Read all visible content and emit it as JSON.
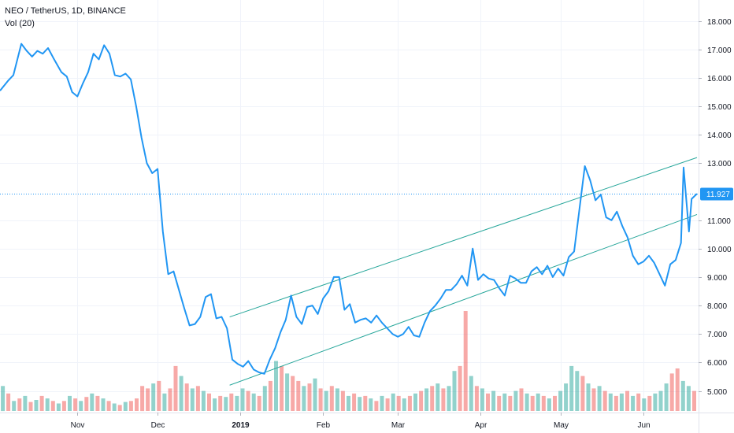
{
  "legend": {
    "symbol": "NEO / TetherUS, 1D, BINANCE",
    "volume": "Vol (20)"
  },
  "colors": {
    "price_line": "#2196f3",
    "channel": "#26a69a",
    "vol_up": "#26a69a",
    "vol_down": "#ef5350",
    "last_price": "#2196f3"
  },
  "chart_data": {
    "type": "line",
    "title": "NEO / TetherUS, 1D, BINANCE",
    "y_ticks": [
      "18.000",
      "17.000",
      "16.000",
      "15.000",
      "14.000",
      "13.000",
      "11.000",
      "10.000",
      "9.000",
      "8.000",
      "7.000",
      "6.000",
      "5.000"
    ],
    "y_tick_values": [
      18,
      17,
      16,
      15,
      14,
      13,
      11,
      10,
      9,
      8,
      7,
      6,
      5
    ],
    "ylim": [
      4.35,
      18.6
    ],
    "x_ticks": [
      {
        "label": "Nov",
        "date": "2018-11-01",
        "bold": false
      },
      {
        "label": "Dec",
        "date": "2018-12-01",
        "bold": false
      },
      {
        "label": "2019",
        "date": "2019-01-01",
        "bold": true
      },
      {
        "label": "Feb",
        "date": "2019-02-01",
        "bold": false
      },
      {
        "label": "Mar",
        "date": "2019-03-01",
        "bold": false
      },
      {
        "label": "Apr",
        "date": "2019-04-01",
        "bold": false
      },
      {
        "label": "May",
        "date": "2019-05-01",
        "bold": false
      },
      {
        "label": "Jun",
        "date": "2019-06-01",
        "bold": false
      }
    ],
    "xlim": [
      "2018-10-03",
      "2019-06-21"
    ],
    "last_price": 11.927,
    "last_price_label": "11.927",
    "series": [
      {
        "values": [
          [
            "2018-10-03",
            15.55
          ],
          [
            "2018-10-06",
            15.9
          ],
          [
            "2018-10-08",
            16.1
          ],
          [
            "2018-10-11",
            17.2
          ],
          [
            "2018-10-13",
            16.95
          ],
          [
            "2018-10-15",
            16.75
          ],
          [
            "2018-10-17",
            16.95
          ],
          [
            "2018-10-19",
            16.85
          ],
          [
            "2018-10-21",
            17.05
          ],
          [
            "2018-10-23",
            16.7
          ],
          [
            "2018-10-26",
            16.2
          ],
          [
            "2018-10-28",
            16.05
          ],
          [
            "2018-10-30",
            15.5
          ],
          [
            "2018-11-01",
            15.35
          ],
          [
            "2018-11-03",
            15.8
          ],
          [
            "2018-11-05",
            16.2
          ],
          [
            "2018-11-07",
            16.85
          ],
          [
            "2018-11-09",
            16.65
          ],
          [
            "2018-11-11",
            17.15
          ],
          [
            "2018-11-13",
            16.85
          ],
          [
            "2018-11-15",
            16.1
          ],
          [
            "2018-11-17",
            16.05
          ],
          [
            "2018-11-19",
            16.15
          ],
          [
            "2018-11-21",
            15.95
          ],
          [
            "2018-11-23",
            15.0
          ],
          [
            "2018-11-25",
            13.9
          ],
          [
            "2018-11-27",
            13.0
          ],
          [
            "2018-11-29",
            12.65
          ],
          [
            "2018-12-01",
            12.8
          ],
          [
            "2018-12-03",
            10.6
          ],
          [
            "2018-12-05",
            9.1
          ],
          [
            "2018-12-07",
            9.2
          ],
          [
            "2018-12-09",
            8.55
          ],
          [
            "2018-12-11",
            7.9
          ],
          [
            "2018-12-13",
            7.3
          ],
          [
            "2018-12-15",
            7.35
          ],
          [
            "2018-12-17",
            7.6
          ],
          [
            "2018-12-19",
            8.3
          ],
          [
            "2018-12-21",
            8.4
          ],
          [
            "2018-12-23",
            7.55
          ],
          [
            "2018-12-25",
            7.6
          ],
          [
            "2018-12-27",
            7.2
          ],
          [
            "2018-12-29",
            6.1
          ],
          [
            "2018-12-31",
            5.95
          ],
          [
            "2019-01-02",
            5.85
          ],
          [
            "2019-01-04",
            6.05
          ],
          [
            "2019-01-06",
            5.75
          ],
          [
            "2019-01-08",
            5.65
          ],
          [
            "2019-01-10",
            5.6
          ],
          [
            "2019-01-12",
            6.1
          ],
          [
            "2019-01-14",
            6.5
          ],
          [
            "2019-01-16",
            7.05
          ],
          [
            "2019-01-18",
            7.5
          ],
          [
            "2019-01-20",
            8.35
          ],
          [
            "2019-01-22",
            7.6
          ],
          [
            "2019-01-24",
            7.35
          ],
          [
            "2019-01-26",
            7.95
          ],
          [
            "2019-01-28",
            8.0
          ],
          [
            "2019-01-30",
            7.7
          ],
          [
            "2019-02-01",
            8.25
          ],
          [
            "2019-02-03",
            8.5
          ],
          [
            "2019-02-05",
            9.0
          ],
          [
            "2019-02-07",
            9.0
          ],
          [
            "2019-02-09",
            7.85
          ],
          [
            "2019-02-11",
            8.05
          ],
          [
            "2019-02-13",
            7.4
          ],
          [
            "2019-02-15",
            7.5
          ],
          [
            "2019-02-17",
            7.55
          ],
          [
            "2019-02-19",
            7.4
          ],
          [
            "2019-02-21",
            7.65
          ],
          [
            "2019-02-23",
            7.4
          ],
          [
            "2019-02-25",
            7.2
          ],
          [
            "2019-02-27",
            7.0
          ],
          [
            "2019-03-01",
            6.9
          ],
          [
            "2019-03-03",
            7.0
          ],
          [
            "2019-03-05",
            7.25
          ],
          [
            "2019-03-07",
            6.95
          ],
          [
            "2019-03-09",
            6.9
          ],
          [
            "2019-03-11",
            7.4
          ],
          [
            "2019-03-13",
            7.8
          ],
          [
            "2019-03-15",
            8.0
          ],
          [
            "2019-03-17",
            8.25
          ],
          [
            "2019-03-19",
            8.55
          ],
          [
            "2019-03-21",
            8.55
          ],
          [
            "2019-03-23",
            8.75
          ],
          [
            "2019-03-25",
            9.05
          ],
          [
            "2019-03-27",
            8.7
          ],
          [
            "2019-03-29",
            10.0
          ],
          [
            "2019-03-31",
            8.9
          ],
          [
            "2019-04-02",
            9.1
          ],
          [
            "2019-04-04",
            8.95
          ],
          [
            "2019-04-06",
            8.9
          ],
          [
            "2019-04-08",
            8.6
          ],
          [
            "2019-04-10",
            8.35
          ],
          [
            "2019-04-12",
            9.05
          ],
          [
            "2019-04-14",
            8.95
          ],
          [
            "2019-04-16",
            8.8
          ],
          [
            "2019-04-18",
            8.8
          ],
          [
            "2019-04-20",
            9.2
          ],
          [
            "2019-04-22",
            9.35
          ],
          [
            "2019-04-24",
            9.1
          ],
          [
            "2019-04-26",
            9.4
          ],
          [
            "2019-04-28",
            9.0
          ],
          [
            "2019-04-30",
            9.3
          ],
          [
            "2019-05-02",
            9.05
          ],
          [
            "2019-05-04",
            9.7
          ],
          [
            "2019-05-06",
            9.9
          ],
          [
            "2019-05-08",
            11.4
          ],
          [
            "2019-05-10",
            12.9
          ],
          [
            "2019-05-12",
            12.4
          ],
          [
            "2019-05-14",
            11.7
          ],
          [
            "2019-05-16",
            11.9
          ],
          [
            "2019-05-18",
            11.1
          ],
          [
            "2019-05-20",
            11.0
          ],
          [
            "2019-05-22",
            11.3
          ],
          [
            "2019-05-24",
            10.8
          ],
          [
            "2019-05-26",
            10.4
          ],
          [
            "2019-05-28",
            9.75
          ],
          [
            "2019-05-30",
            9.45
          ],
          [
            "2019-06-01",
            9.55
          ],
          [
            "2019-06-03",
            9.75
          ],
          [
            "2019-06-05",
            9.5
          ],
          [
            "2019-06-07",
            9.1
          ],
          [
            "2019-06-09",
            8.7
          ],
          [
            "2019-06-11",
            9.45
          ],
          [
            "2019-06-13",
            9.6
          ],
          [
            "2019-06-15",
            10.2
          ],
          [
            "2019-06-16",
            12.85
          ],
          [
            "2019-06-18",
            10.6
          ],
          [
            "2019-06-19",
            11.75
          ],
          [
            "2019-06-21",
            11.93
          ]
        ]
      }
    ],
    "channel_lines": [
      {
        "from": [
          "2018-12-28",
          7.6
        ],
        "to": [
          "2019-06-21",
          13.2
        ]
      },
      {
        "from": [
          "2018-12-28",
          5.2
        ],
        "to": [
          "2019-06-21",
          11.2
        ]
      }
    ],
    "volume": {
      "label": "Vol (20)",
      "values": [
        [
          0.5,
          "up"
        ],
        [
          0.35,
          "down"
        ],
        [
          0.2,
          "up"
        ],
        [
          0.25,
          "down"
        ],
        [
          0.3,
          "up"
        ],
        [
          0.18,
          "down"
        ],
        [
          0.22,
          "up"
        ],
        [
          0.3,
          "down"
        ],
        [
          0.25,
          "up"
        ],
        [
          0.2,
          "down"
        ],
        [
          0.15,
          "up"
        ],
        [
          0.2,
          "down"
        ],
        [
          0.3,
          "up"
        ],
        [
          0.25,
          "down"
        ],
        [
          0.2,
          "up"
        ],
        [
          0.28,
          "down"
        ],
        [
          0.35,
          "up"
        ],
        [
          0.3,
          "down"
        ],
        [
          0.25,
          "up"
        ],
        [
          0.2,
          "down"
        ],
        [
          0.15,
          "up"
        ],
        [
          0.12,
          "down"
        ],
        [
          0.18,
          "up"
        ],
        [
          0.2,
          "down"
        ],
        [
          0.25,
          "down"
        ],
        [
          0.5,
          "down"
        ],
        [
          0.45,
          "down"
        ],
        [
          0.55,
          "up"
        ],
        [
          0.6,
          "down"
        ],
        [
          0.35,
          "up"
        ],
        [
          0.45,
          "down"
        ],
        [
          0.9,
          "down"
        ],
        [
          0.7,
          "up"
        ],
        [
          0.55,
          "down"
        ],
        [
          0.45,
          "up"
        ],
        [
          0.5,
          "down"
        ],
        [
          0.4,
          "up"
        ],
        [
          0.35,
          "down"
        ],
        [
          0.25,
          "up"
        ],
        [
          0.3,
          "down"
        ],
        [
          0.28,
          "up"
        ],
        [
          0.35,
          "down"
        ],
        [
          0.3,
          "up"
        ],
        [
          0.45,
          "up"
        ],
        [
          0.4,
          "down"
        ],
        [
          0.35,
          "up"
        ],
        [
          0.3,
          "down"
        ],
        [
          0.5,
          "up"
        ],
        [
          0.6,
          "down"
        ],
        [
          1.0,
          "up"
        ],
        [
          0.9,
          "down"
        ],
        [
          0.75,
          "up"
        ],
        [
          0.7,
          "down"
        ],
        [
          0.6,
          "down"
        ],
        [
          0.5,
          "up"
        ],
        [
          0.55,
          "down"
        ],
        [
          0.65,
          "up"
        ],
        [
          0.45,
          "down"
        ],
        [
          0.4,
          "up"
        ],
        [
          0.5,
          "down"
        ],
        [
          0.45,
          "up"
        ],
        [
          0.4,
          "down"
        ],
        [
          0.3,
          "up"
        ],
        [
          0.35,
          "down"
        ],
        [
          0.28,
          "up"
        ],
        [
          0.3,
          "down"
        ],
        [
          0.25,
          "up"
        ],
        [
          0.2,
          "down"
        ],
        [
          0.3,
          "up"
        ],
        [
          0.25,
          "down"
        ],
        [
          0.35,
          "up"
        ],
        [
          0.3,
          "down"
        ],
        [
          0.25,
          "up"
        ],
        [
          0.3,
          "down"
        ],
        [
          0.35,
          "up"
        ],
        [
          0.4,
          "down"
        ],
        [
          0.45,
          "up"
        ],
        [
          0.5,
          "down"
        ],
        [
          0.55,
          "up"
        ],
        [
          0.45,
          "down"
        ],
        [
          0.5,
          "up"
        ],
        [
          0.8,
          "up"
        ],
        [
          0.9,
          "down"
        ],
        [
          2.0,
          "down"
        ],
        [
          0.7,
          "up"
        ],
        [
          0.5,
          "down"
        ],
        [
          0.45,
          "up"
        ],
        [
          0.35,
          "down"
        ],
        [
          0.4,
          "up"
        ],
        [
          0.3,
          "down"
        ],
        [
          0.35,
          "up"
        ],
        [
          0.3,
          "down"
        ],
        [
          0.4,
          "up"
        ],
        [
          0.45,
          "down"
        ],
        [
          0.35,
          "up"
        ],
        [
          0.3,
          "down"
        ],
        [
          0.35,
          "up"
        ],
        [
          0.3,
          "down"
        ],
        [
          0.25,
          "up"
        ],
        [
          0.3,
          "down"
        ],
        [
          0.4,
          "up"
        ],
        [
          0.55,
          "up"
        ],
        [
          0.9,
          "up"
        ],
        [
          0.8,
          "up"
        ],
        [
          0.7,
          "down"
        ],
        [
          0.55,
          "up"
        ],
        [
          0.45,
          "down"
        ],
        [
          0.5,
          "up"
        ],
        [
          0.4,
          "down"
        ],
        [
          0.35,
          "up"
        ],
        [
          0.3,
          "down"
        ],
        [
          0.35,
          "up"
        ],
        [
          0.4,
          "down"
        ],
        [
          0.3,
          "up"
        ],
        [
          0.35,
          "down"
        ],
        [
          0.25,
          "up"
        ],
        [
          0.3,
          "down"
        ],
        [
          0.35,
          "up"
        ],
        [
          0.4,
          "up"
        ],
        [
          0.55,
          "up"
        ],
        [
          0.75,
          "down"
        ],
        [
          0.85,
          "down"
        ],
        [
          0.6,
          "up"
        ],
        [
          0.5,
          "up"
        ],
        [
          0.4,
          "down"
        ]
      ]
    }
  }
}
